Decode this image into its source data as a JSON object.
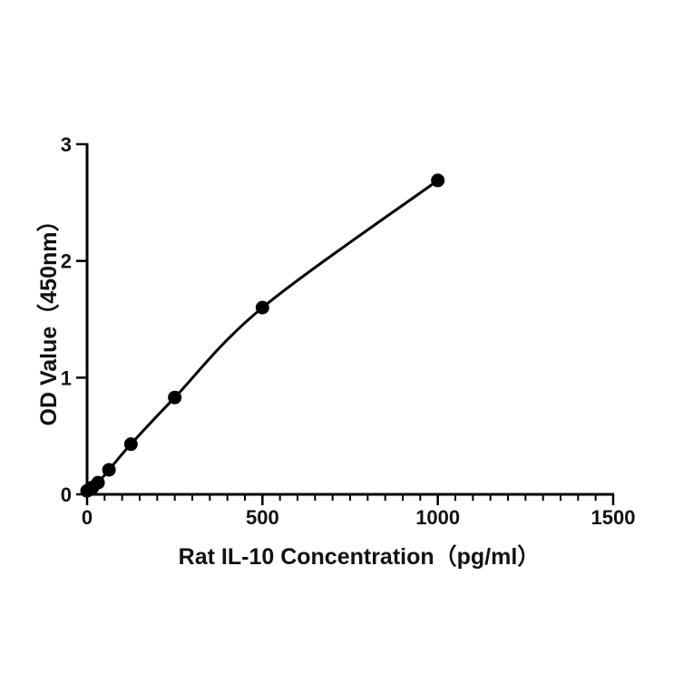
{
  "chart_data": {
    "type": "scatter",
    "xlabel": "Rat IL-10 Concentration（pg/ml）",
    "ylabel": "OD Value（450nm）",
    "xlim": [
      0,
      1500
    ],
    "ylim": [
      0,
      3
    ],
    "xticks": [
      0,
      500,
      1000,
      1500
    ],
    "yticks": [
      0,
      1,
      2,
      3
    ],
    "xtick_labels": [
      "0",
      "500",
      "1000",
      "1500"
    ],
    "ytick_labels": [
      "0",
      "1",
      "2",
      "3"
    ],
    "grid": false,
    "legend": "none",
    "fit_line": true,
    "series": [
      {
        "x": [
          0,
          15.6,
          31.25,
          62.5,
          125,
          250,
          500,
          1000
        ],
        "y": [
          0.03,
          0.06,
          0.1,
          0.21,
          0.43,
          0.83,
          1.6,
          2.69
        ]
      }
    ]
  }
}
